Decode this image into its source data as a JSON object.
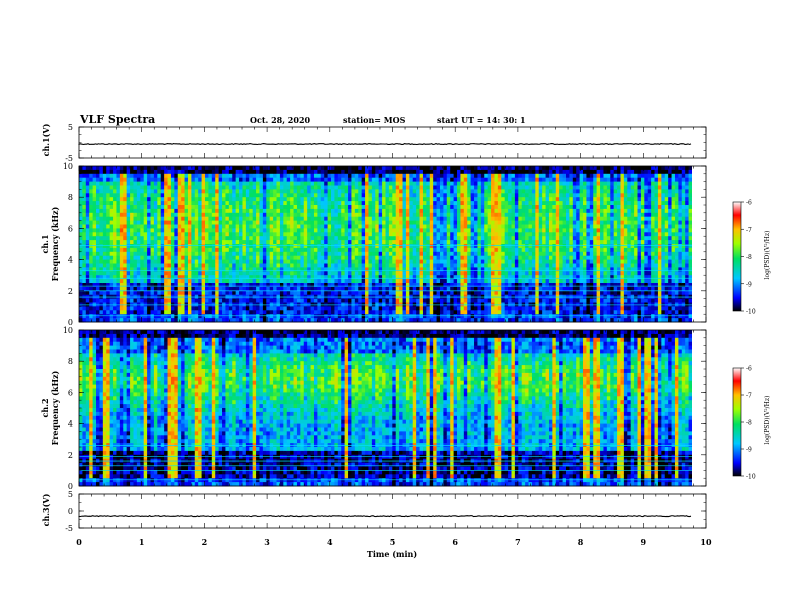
{
  "header": {
    "title": "VLF Spectra",
    "date": "Oct. 28, 2020",
    "station": "station= MOS",
    "start": "start  UT  =   14: 30: 1"
  },
  "chart_data": [
    {
      "type": "line",
      "panel": "ch1-waveform",
      "ylabel": "ch.1(V)",
      "ylim": [
        -5,
        5
      ],
      "yticks": [
        "5",
        "-5"
      ],
      "xlim": [
        0,
        10
      ],
      "level": -0.5,
      "grid": false
    },
    {
      "type": "heatmap",
      "panel": "ch1-spectrogram",
      "ylabel_top": "ch.1",
      "ylabel": "Frequency  (kHz)",
      "ylim": [
        0,
        10
      ],
      "yticks": [
        "0",
        "2",
        "4",
        "6",
        "8",
        "10"
      ],
      "xlim": [
        0,
        10
      ],
      "colorbar": {
        "label": "log(PSD)(V²/Hz)",
        "range": [
          -10,
          -6
        ],
        "ticks": [
          "-6",
          "-7",
          "-8",
          "-9",
          "-10"
        ]
      }
    },
    {
      "type": "heatmap",
      "panel": "ch2-spectrogram",
      "ylabel_top": "ch.2",
      "ylabel": "Frequency  (kHz)",
      "ylim": [
        0,
        10
      ],
      "yticks": [
        "0",
        "2",
        "4",
        "6",
        "8",
        "10"
      ],
      "xlim": [
        0,
        10
      ],
      "colorbar": {
        "label": "log(PSD)(V²/Hz)",
        "range": [
          -10,
          -6
        ],
        "ticks": [
          "-6",
          "-7",
          "-8",
          "-9",
          "-10"
        ]
      }
    },
    {
      "type": "line",
      "panel": "ch3-waveform",
      "ylabel": "ch.3(V)",
      "ylim": [
        -5,
        5
      ],
      "yticks": [
        "5",
        "0",
        "-5"
      ],
      "xlim": [
        0,
        10
      ],
      "level": -1.5,
      "xlabel": "Time  (min)",
      "xticks": [
        "0",
        "1",
        "2",
        "3",
        "4",
        "5",
        "6",
        "7",
        "8",
        "9",
        "10"
      ],
      "grid": false
    }
  ]
}
